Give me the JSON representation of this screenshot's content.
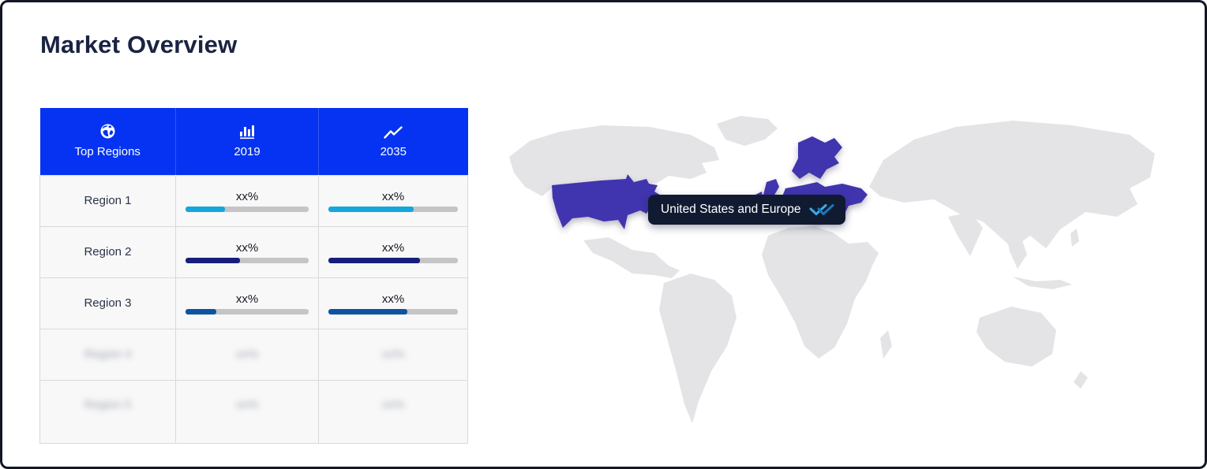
{
  "page": {
    "title": "Market Overview"
  },
  "table": {
    "header": [
      {
        "label": "Top Regions",
        "icon": "globe-icon"
      },
      {
        "label": "2019",
        "icon": "bar-chart-icon"
      },
      {
        "label": "2035",
        "icon": "trend-up-icon"
      }
    ],
    "rows": [
      {
        "region": "Region 1",
        "v2019": {
          "label": "xx%",
          "pct": 32
        },
        "v2035": {
          "label": "xx%",
          "pct": 66
        },
        "bar_color": "#17a6db",
        "blurred": false
      },
      {
        "region": "Region 2",
        "v2019": {
          "label": "xx%",
          "pct": 44
        },
        "v2035": {
          "label": "xx%",
          "pct": 71
        },
        "bar_color": "#161e7c",
        "blurred": false
      },
      {
        "region": "Region 3",
        "v2019": {
          "label": "xx%",
          "pct": 25
        },
        "v2035": {
          "label": "xx%",
          "pct": 61
        },
        "bar_color": "#0f549e",
        "blurred": false
      },
      {
        "region": "Region 4",
        "v2019": {
          "label": "xx%"
        },
        "v2035": {
          "label": "xx%"
        },
        "blurred": true
      },
      {
        "region": "Region 5",
        "v2019": {
          "label": "xx%"
        },
        "v2035": {
          "label": "xx%"
        },
        "blurred": true
      }
    ]
  },
  "map": {
    "tooltip_label": "United States and Europe",
    "tooltip_icon": "double-check-icon",
    "highlighted_regions": [
      "United States",
      "Europe"
    ],
    "highlight_color": "#4134ae",
    "base_color": "#e4e4e7",
    "tooltip_bg": "#101b32"
  },
  "colors": {
    "header_blue": "#0533f1",
    "title_navy": "#1b2342",
    "track_gray": "#c5c5c8",
    "check_cyan": "#39ace3",
    "check_blue": "#1b75c0"
  },
  "chart_data": {
    "type": "table",
    "title": "Market Overview",
    "columns": [
      "Top Regions",
      "2019",
      "2035"
    ],
    "rows": [
      {
        "region": "Region 1",
        "2019": "xx%",
        "2035": "xx%",
        "bar_2019_pct": 32,
        "bar_2035_pct": 66
      },
      {
        "region": "Region 2",
        "2019": "xx%",
        "2035": "xx%",
        "bar_2019_pct": 44,
        "bar_2035_pct": 71
      },
      {
        "region": "Region 3",
        "2019": "xx%",
        "2035": "xx%",
        "bar_2019_pct": 25,
        "bar_2035_pct": 61
      },
      {
        "region": "Region 4 (blurred)",
        "2019": "xx%",
        "2035": "xx%"
      },
      {
        "region": "Region 5 (blurred)",
        "2019": "xx%",
        "2035": "xx%"
      }
    ],
    "map_annotation": "United States and Europe"
  }
}
